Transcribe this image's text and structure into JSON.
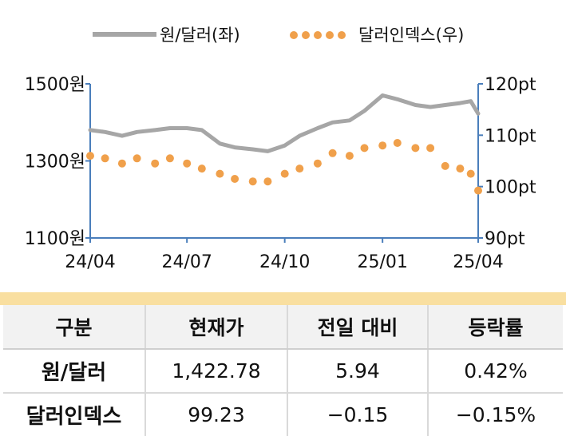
{
  "chart_data": {
    "type": "line",
    "legend": {
      "placement": "top",
      "entries": [
        {
          "name": "원/달러(좌)",
          "style": "solid line"
        },
        {
          "name": "달러인덱스(우)",
          "style": "dotted"
        }
      ]
    },
    "x_ticks": [
      "24/04",
      "24/07",
      "24/10",
      "25/01",
      "25/04"
    ],
    "y_left": {
      "ticks": [
        "1500원",
        "1300원",
        "1100원"
      ],
      "range": [
        1100,
        1500
      ]
    },
    "y_right": {
      "ticks": [
        "120pt",
        "110pt",
        "100pt",
        "90pt"
      ],
      "range": [
        90,
        120
      ]
    },
    "colors": {
      "krw": "#a6a6a6",
      "dxy": "#f0a04b",
      "axis": "#4a7ebb"
    },
    "series": [
      {
        "name": "원/달러(좌)",
        "axis": "left",
        "x": [
          "2024-04-01",
          "2024-04-15",
          "2024-05-01",
          "2024-05-15",
          "2024-06-01",
          "2024-06-15",
          "2024-07-01",
          "2024-07-15",
          "2024-08-01",
          "2024-08-15",
          "2024-09-01",
          "2024-09-15",
          "2024-10-01",
          "2024-10-15",
          "2024-11-01",
          "2024-11-15",
          "2024-12-01",
          "2024-12-15",
          "2025-01-01",
          "2025-01-15",
          "2025-02-01",
          "2025-02-15",
          "2025-03-01",
          "2025-03-15",
          "2025-03-25",
          "2025-04-01"
        ],
        "values": [
          1380,
          1375,
          1365,
          1375,
          1380,
          1385,
          1385,
          1380,
          1345,
          1335,
          1330,
          1325,
          1340,
          1365,
          1385,
          1400,
          1405,
          1430,
          1470,
          1460,
          1445,
          1440,
          1445,
          1450,
          1455,
          1422.78
        ]
      },
      {
        "name": "달러인덱스(우)",
        "axis": "right",
        "x": [
          "2024-04-01",
          "2024-04-15",
          "2024-05-01",
          "2024-05-15",
          "2024-06-01",
          "2024-06-15",
          "2024-07-01",
          "2024-07-15",
          "2024-08-01",
          "2024-08-15",
          "2024-09-01",
          "2024-09-15",
          "2024-10-01",
          "2024-10-15",
          "2024-11-01",
          "2024-11-15",
          "2024-12-01",
          "2024-12-15",
          "2025-01-01",
          "2025-01-15",
          "2025-02-01",
          "2025-02-15",
          "2025-03-01",
          "2025-03-15",
          "2025-03-25",
          "2025-04-01"
        ],
        "values": [
          106,
          105.5,
          104.5,
          105.5,
          104.5,
          105.5,
          104.5,
          103.5,
          102.5,
          101.5,
          101,
          101,
          102.5,
          103.5,
          104.5,
          106.5,
          106,
          107.5,
          108,
          108.5,
          107.5,
          107.5,
          104,
          103.5,
          102.5,
          99.23
        ]
      }
    ]
  },
  "table": {
    "headers": [
      "구분",
      "현재가",
      "전일 대비",
      "등락률"
    ],
    "rows": [
      [
        "원/달러",
        "1,422.78",
        "5.94",
        "0.42%"
      ],
      [
        "달러인덱스",
        "99.23",
        "−0.15",
        "−0.15%"
      ]
    ]
  }
}
